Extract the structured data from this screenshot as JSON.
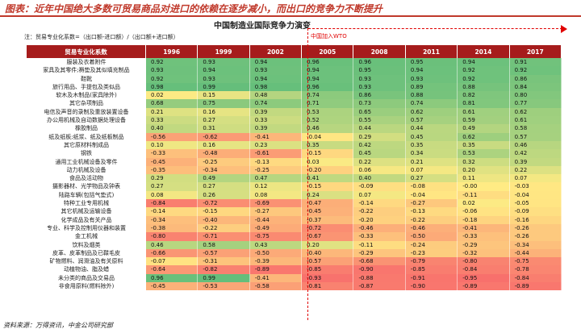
{
  "page": {
    "top_title": "图表：近年中国绝大多数可贸易商品对进口的依赖在逐步减小，而出口的竞争力不断提升",
    "table_title": "中国制造业国际竞争力演变",
    "note": "注：贸易专业化系数=（出口额-进口额）/（出口额+进口额）",
    "wto_label": "中国加入WTO",
    "source": "资料来源：万得资讯，中金公司研究部"
  },
  "table": {
    "first_header": "贸易专业化系数",
    "years": [
      "1996",
      "1999",
      "2002",
      "2005",
      "2008",
      "2011",
      "2014",
      "2017"
    ],
    "rows": [
      {
        "name": "服装及衣着附件",
        "values": [
          "0.92",
          "0.93",
          "0.94",
          "0.96",
          "0.96",
          "0.95",
          "0.94",
          "0.91"
        ]
      },
      {
        "name": "家具及其零件;褥垫及其似填充制品",
        "values": [
          "0.93",
          "0.94",
          "0.93",
          "0.94",
          "0.95",
          "0.94",
          "0.92",
          "0.92"
        ]
      },
      {
        "name": "鞋靴",
        "values": [
          "0.92",
          "0.93",
          "0.94",
          "0.94",
          "0.93",
          "0.93",
          "0.92",
          "0.86"
        ]
      },
      {
        "name": "旅行用品、手提包及类似品",
        "values": [
          "0.98",
          "0.99",
          "0.98",
          "0.96",
          "0.93",
          "0.89",
          "0.88",
          "0.84"
        ]
      },
      {
        "name": "软木及木制品(家具除外)",
        "values": [
          "0.02",
          "0.15",
          "0.48",
          "0.74",
          "0.86",
          "0.88",
          "0.82",
          "0.80"
        ]
      },
      {
        "name": "其它杂项制品",
        "values": [
          "0.68",
          "0.75",
          "0.74",
          "0.71",
          "0.73",
          "0.74",
          "0.81",
          "0.77"
        ]
      },
      {
        "name": "电信及声音的录制及重放装置设备",
        "values": [
          "0.21",
          "0.16",
          "0.39",
          "0.53",
          "0.65",
          "0.62",
          "0.61",
          "0.62"
        ]
      },
      {
        "name": "办公用机械及自动数据处理设备",
        "values": [
          "0.33",
          "0.27",
          "0.33",
          "0.52",
          "0.55",
          "0.57",
          "0.59",
          "0.61"
        ]
      },
      {
        "name": "橡胶制品",
        "values": [
          "0.40",
          "0.31",
          "0.39",
          "0.46",
          "0.44",
          "0.44",
          "0.49",
          "0.58"
        ]
      },
      {
        "name": "纸及纸板;纸浆、纸及纸板制品",
        "values": [
          "-0.56",
          "-0.62",
          "-0.41",
          "-0.04",
          "0.29",
          "0.45",
          "0.62",
          "0.57"
        ]
      },
      {
        "name": "其它原材料制成品",
        "values": [
          "0.10",
          "0.16",
          "0.23",
          "0.35",
          "0.42",
          "0.35",
          "0.35",
          "0.46"
        ]
      },
      {
        "name": "钢铁",
        "values": [
          "-0.33",
          "-0.48",
          "-0.61",
          "-0.15",
          "0.45",
          "0.34",
          "0.53",
          "0.42"
        ]
      },
      {
        "name": "通用工业机械设备及零件",
        "values": [
          "-0.45",
          "-0.25",
          "-0.13",
          "0.03",
          "0.22",
          "0.21",
          "0.32",
          "0.39"
        ]
      },
      {
        "name": "动力机械及设备",
        "values": [
          "-0.35",
          "-0.34",
          "-0.25",
          "-0.20",
          "0.06",
          "0.07",
          "0.20",
          "0.22"
        ]
      },
      {
        "name": "食品及活动物",
        "values": [
          "0.29",
          "0.49",
          "0.47",
          "0.41",
          "0.40",
          "0.27",
          "0.11",
          "0.07"
        ]
      },
      {
        "name": "摄影器材、光学物品及钟表",
        "values": [
          "0.27",
          "0.27",
          "0.12",
          "-0.15",
          "-0.09",
          "-0.08",
          "-0.00",
          "-0.03"
        ]
      },
      {
        "name": "陆路车辆(包括气垫式)",
        "values": [
          "0.08",
          "0.26",
          "0.08",
          "0.24",
          "0.07",
          "-0.04",
          "-0.11",
          "-0.04"
        ]
      },
      {
        "name": "特种工业专用机械",
        "values": [
          "-0.84",
          "-0.72",
          "-0.69",
          "-0.47",
          "-0.14",
          "-0.27",
          "0.02",
          "-0.05"
        ]
      },
      {
        "name": "其它机械及运输设备",
        "values": [
          "-0.14",
          "-0.15",
          "-0.27",
          "-0.45",
          "-0.22",
          "-0.13",
          "-0.06",
          "-0.09"
        ]
      },
      {
        "name": "化学成品及有关产品",
        "values": [
          "-0.34",
          "-0.40",
          "-0.44",
          "-0.37",
          "-0.20",
          "-0.22",
          "-0.18",
          "-0.16"
        ]
      },
      {
        "name": "专业、科学及控制用仪器和装置",
        "values": [
          "-0.38",
          "-0.22",
          "-0.49",
          "-0.72",
          "-0.46",
          "-0.46",
          "-0.41",
          "-0.26"
        ]
      },
      {
        "name": "金工机械",
        "values": [
          "-0.80",
          "-0.71",
          "-0.75",
          "-0.67",
          "-0.33",
          "-0.50",
          "-0.33",
          "-0.26"
        ]
      },
      {
        "name": "饮料及烟类",
        "values": [
          "0.46",
          "0.58",
          "0.43",
          "0.20",
          "-0.11",
          "-0.24",
          "-0.29",
          "-0.34"
        ]
      },
      {
        "name": "皮革、皮革制品及已鞣毛皮",
        "values": [
          "-0.66",
          "-0.57",
          "-0.50",
          "-0.40",
          "-0.29",
          "-0.23",
          "-0.32",
          "-0.44"
        ]
      },
      {
        "name": "矿物燃料、润滑油及有关原料",
        "values": [
          "-0.07",
          "-0.31",
          "-0.39",
          "-0.57",
          "-0.68",
          "-0.79",
          "-0.80",
          "-0.75"
        ]
      },
      {
        "name": "动植物油、脂及蜡",
        "values": [
          "-0.64",
          "-0.82",
          "-0.89",
          "-0.85",
          "-0.90",
          "-0.85",
          "-0.84",
          "-0.78"
        ]
      },
      {
        "name": "未分类的商品及交易品",
        "values": [
          "0.96",
          "0.99",
          "-0.41",
          "-0.93",
          "-0.88",
          "-0.91",
          "-0.95",
          "-0.84"
        ]
      },
      {
        "name": "非食用原料(燃料除外)",
        "values": [
          "-0.45",
          "-0.53",
          "-0.58",
          "-0.81",
          "-0.87",
          "-0.90",
          "-0.89",
          "-0.89"
        ]
      }
    ]
  },
  "colors": {
    "header_bg": "#a61c1c",
    "accent_red": "#c0392b",
    "wto_red": "#e00000",
    "scale_low": "#f8696b",
    "scale_mid": "#ffeb84",
    "scale_high": "#63be7b"
  }
}
